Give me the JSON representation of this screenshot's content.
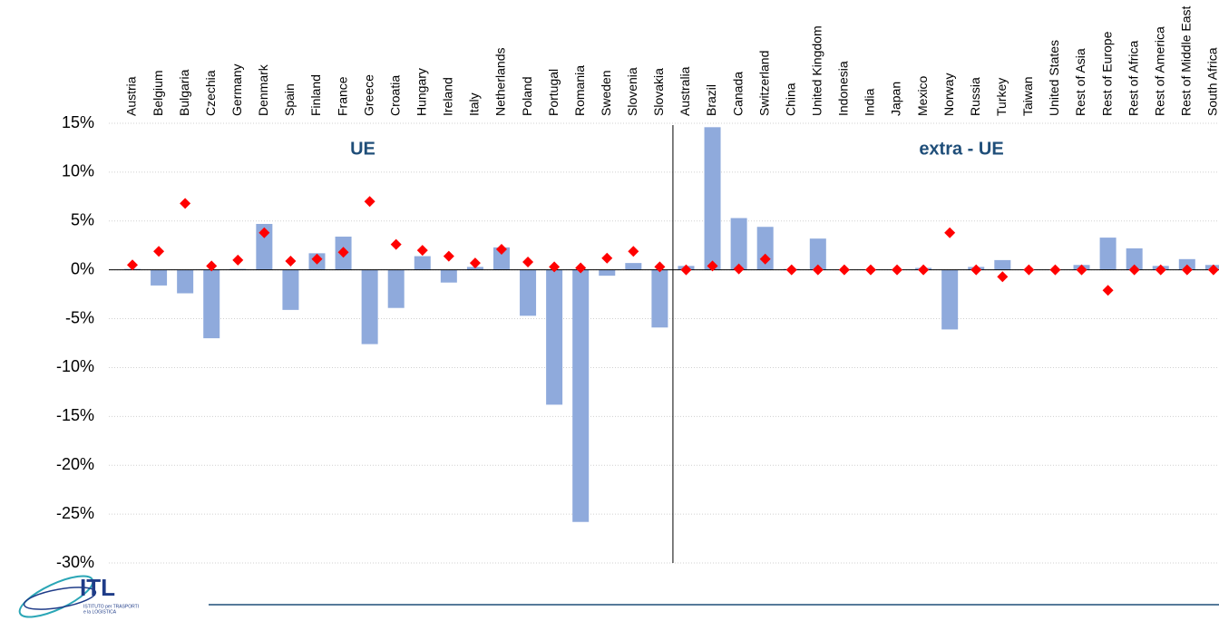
{
  "chart_data": {
    "type": "bar",
    "categories": [
      "Austria",
      "Belgium",
      "Bulgaria",
      "Czechia",
      "Germany",
      "Denmark",
      "Spain",
      "Finland",
      "France",
      "Greece",
      "Croatia",
      "Hungary",
      "Ireland",
      "Italy",
      "Netherlands",
      "Poland",
      "Portugal",
      "Romania",
      "Sweden",
      "Slovenia",
      "Slovakia",
      "Australia",
      "Brazil",
      "Canada",
      "Switzerland",
      "China",
      "United Kingdom",
      "Indonesia",
      "India",
      "Japan",
      "Mexico",
      "Norway",
      "Russia",
      "Turkey",
      "Taiwan",
      "United States",
      "Rest of Asia",
      "Rest of Europe",
      "Rest of Africa",
      "Rest of America",
      "Rest of Middle East",
      "South Africa"
    ],
    "series": [
      {
        "type": "bar",
        "color": "#8faadc",
        "values": [
          0.1,
          -1.6,
          -2.4,
          -7.0,
          0.1,
          4.7,
          -4.1,
          1.7,
          3.4,
          -7.6,
          -3.9,
          1.4,
          -1.3,
          0.3,
          2.3,
          -4.7,
          -13.8,
          -25.8,
          -0.6,
          0.7,
          -5.9,
          0.4,
          14.6,
          5.3,
          4.4,
          0.1,
          3.2,
          0.0,
          0.0,
          0.0,
          0.2,
          -6.1,
          0.3,
          1.0,
          0.0,
          0.0,
          0.5,
          3.3,
          2.2,
          0.4,
          1.1,
          0.5
        ]
      },
      {
        "type": "scatter",
        "color": "#ff0000",
        "values": [
          0.5,
          1.9,
          6.8,
          0.4,
          1.0,
          3.8,
          0.9,
          1.1,
          1.8,
          7.0,
          2.6,
          2.0,
          1.4,
          0.7,
          2.1,
          0.8,
          0.3,
          0.2,
          1.2,
          1.9,
          0.3,
          0.0,
          0.4,
          0.1,
          1.1,
          0.0,
          0.0,
          0.0,
          0.0,
          0.0,
          0.0,
          3.8,
          0.0,
          -0.7,
          0.0,
          0.0,
          0.0,
          -2.1,
          0.0,
          0.0,
          0.0,
          0.0
        ]
      }
    ],
    "ylim": [
      -30,
      15
    ],
    "yticks": [
      {
        "value": 15,
        "label": "15%"
      },
      {
        "value": 10,
        "label": "10%"
      },
      {
        "value": 5,
        "label": "5%"
      },
      {
        "value": 0,
        "label": "0%"
      },
      {
        "value": -5,
        "label": "-5%"
      },
      {
        "value": -10,
        "label": "-10%"
      },
      {
        "value": -15,
        "label": "-15%"
      },
      {
        "value": -20,
        "label": "-20%"
      },
      {
        "value": -25,
        "label": "-25%"
      },
      {
        "value": -30,
        "label": "-30%"
      }
    ],
    "grid": true,
    "annotations": [
      "UE",
      "extra - UE"
    ]
  },
  "logo": {
    "title": "ITL",
    "subtitle": [
      "ISTITUTO per TRASPORTI",
      "e la LOGISTICA"
    ]
  }
}
